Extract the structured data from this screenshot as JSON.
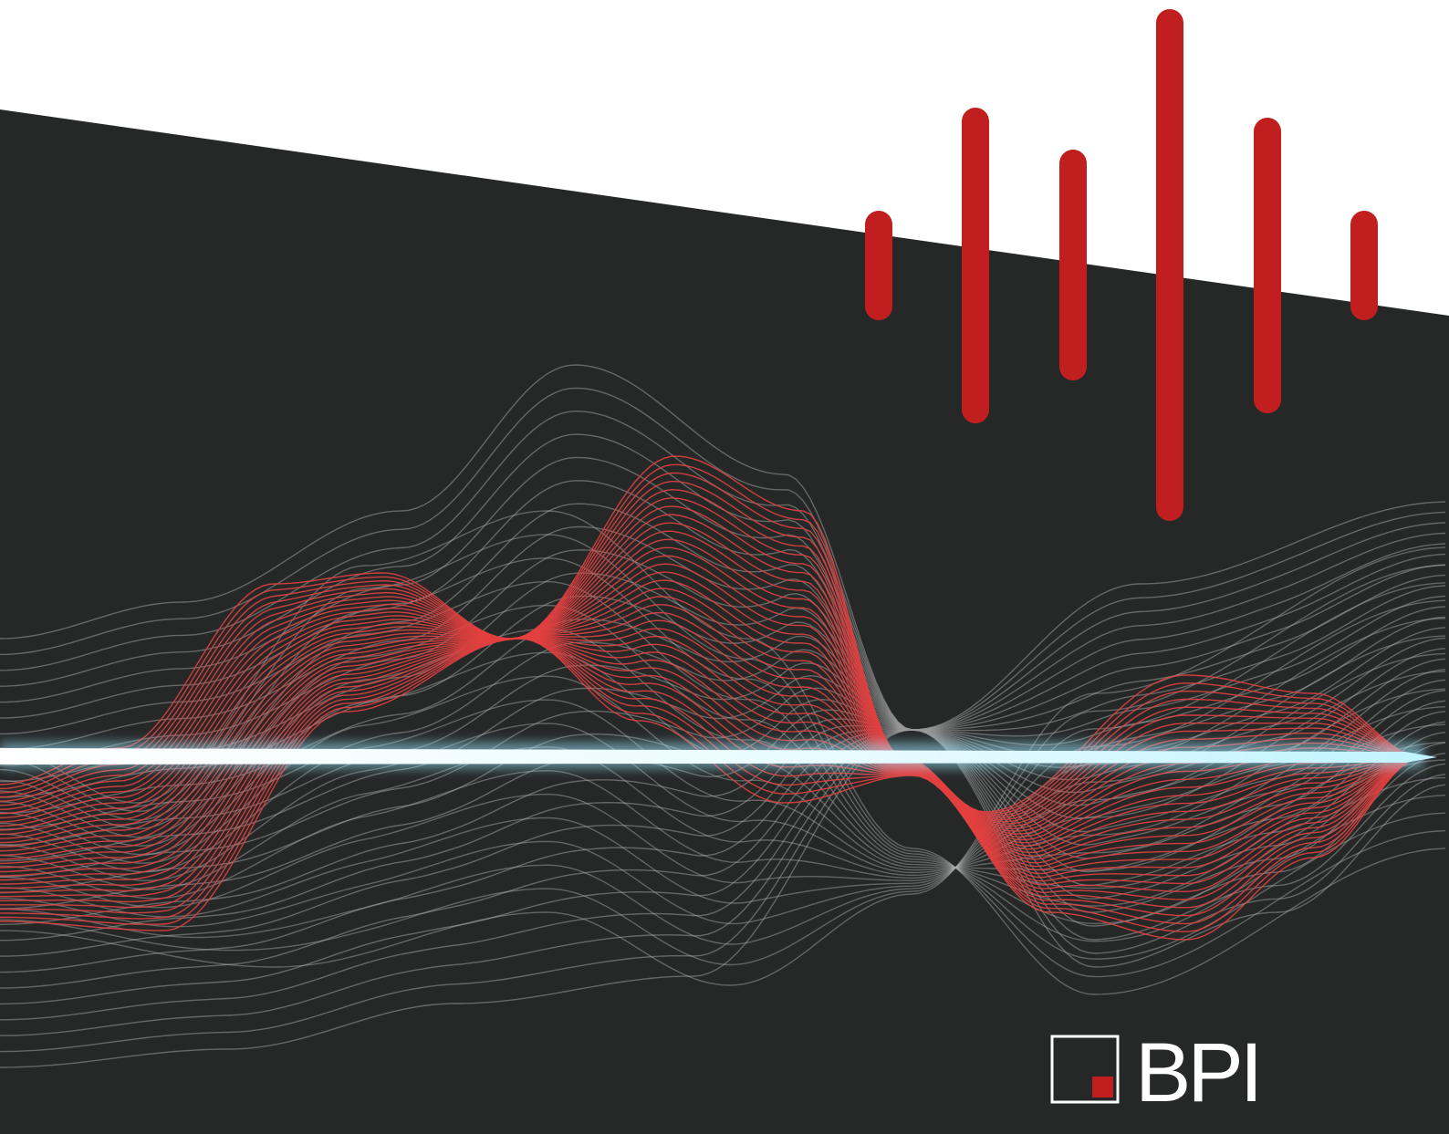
{
  "logo": {
    "text": "BPI"
  }
}
